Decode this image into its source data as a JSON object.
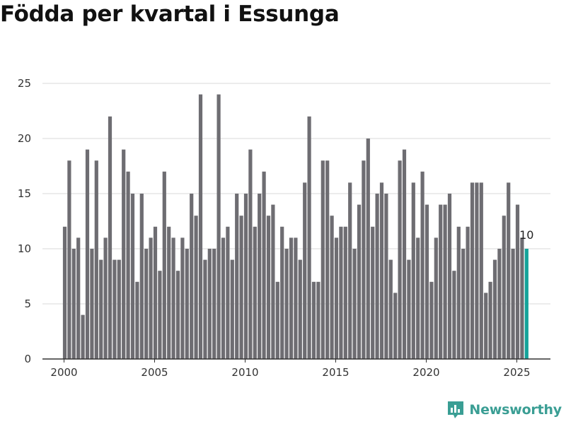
{
  "title": "Födda per kvartal i Essunga",
  "brand": {
    "name": "Newsworthy",
    "icon": "newsworthy-logo-icon",
    "color": "#3a9e94"
  },
  "colors": {
    "bar": "#6e6d72",
    "highlight": "#14a39a",
    "grid": "#d9d9d9",
    "axis": "#333333"
  },
  "chart_data": {
    "type": "bar",
    "title": "Födda per kvartal i Essunga",
    "xlabel": "",
    "ylabel": "",
    "ylim": [
      0,
      25
    ],
    "yticks": [
      0,
      5,
      10,
      15,
      20,
      25
    ],
    "xticks": [
      2000,
      2005,
      2010,
      2015,
      2020,
      2025
    ],
    "x_start": "2000 Q1",
    "grid": "horizontal",
    "highlight_last": true,
    "annotations": [
      {
        "text": "10",
        "target": "last"
      }
    ],
    "values": [
      12,
      18,
      10,
      11,
      4,
      19,
      10,
      18,
      9,
      11,
      22,
      9,
      9,
      19,
      17,
      15,
      7,
      15,
      10,
      11,
      12,
      8,
      17,
      12,
      11,
      8,
      11,
      10,
      15,
      13,
      24,
      9,
      10,
      10,
      24,
      11,
      12,
      9,
      15,
      13,
      15,
      19,
      12,
      15,
      17,
      13,
      14,
      7,
      12,
      10,
      11,
      11,
      9,
      16,
      22,
      7,
      7,
      18,
      18,
      13,
      11,
      12,
      12,
      16,
      10,
      14,
      18,
      20,
      12,
      15,
      16,
      15,
      9,
      6,
      18,
      19,
      9,
      16,
      11,
      17,
      14,
      7,
      11,
      14,
      14,
      15,
      8,
      12,
      10,
      12,
      16,
      16,
      16,
      6,
      7,
      9,
      10,
      13,
      16,
      10,
      14,
      11,
      10
    ]
  }
}
